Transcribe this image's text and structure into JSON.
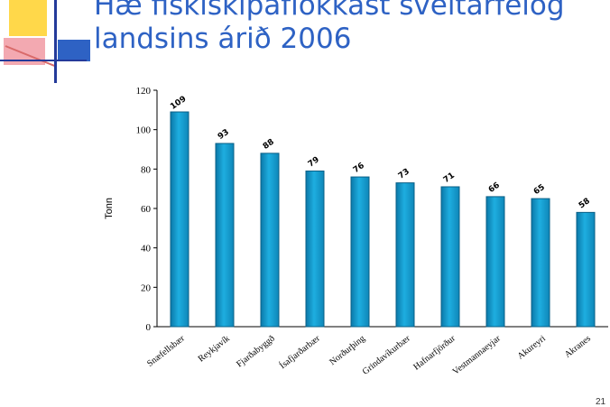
{
  "title_line1": "Hæ fiskiskipaflokkast sveitarfélög",
  "title_line2": "landsins árið 2006",
  "slide_number": "21",
  "chart_data": {
    "type": "bar",
    "ylabel": "Tonn",
    "ylim": [
      0,
      120
    ],
    "yticks": [
      0,
      20,
      40,
      60,
      80,
      100,
      120
    ],
    "categories": [
      "Snæfellsbær",
      "Reykjavík",
      "Fjarðabyggð",
      "Ísafjarðarbær",
      "Norðurþing",
      "Grindavíkurbær",
      "Hafnarfjörður",
      "Vestmannaeyjar",
      "Akureyri",
      "Akranes"
    ],
    "values": [
      109,
      93,
      88,
      79,
      76,
      73,
      71,
      66,
      65,
      58
    ],
    "data_labels": [
      "109",
      "93",
      "88",
      "79",
      "76",
      "73",
      "71",
      "66",
      "65",
      "58"
    ],
    "bar_color": "#1eaee0",
    "bar_edge_color": "#0a5f86"
  }
}
